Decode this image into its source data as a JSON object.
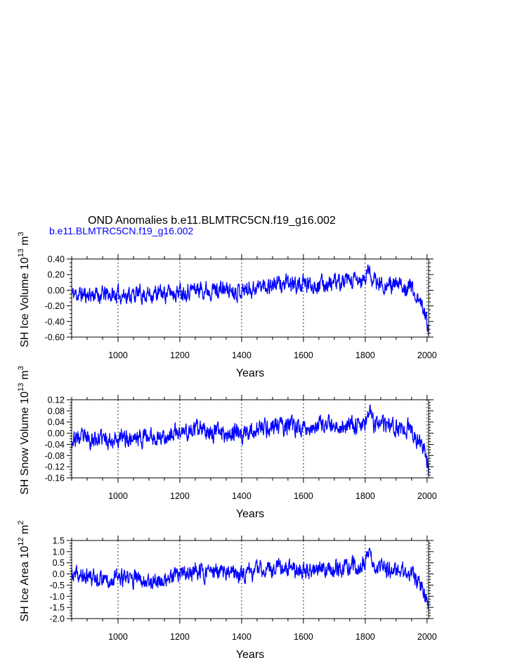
{
  "title": "OND Anomalies b.e11.BLMTRC5CN.f19_g16.002",
  "legend_label": "b.e11.BLMTRC5CN.f19_g16.002",
  "series_color": "#0000ff",
  "chart_data": [
    {
      "type": "line",
      "ylabel_main": "SH Ice Volume 10",
      "ylabel_exp": "13",
      "ylabel_unit": "m",
      "ylabel_unit_exp": "3",
      "xlabel": "Years",
      "xlim": [
        850,
        2005
      ],
      "ylim": [
        -0.6,
        0.4
      ],
      "xticks": [
        1000,
        1200,
        1400,
        1600,
        1800,
        2000
      ],
      "yticks": [
        0.4,
        0.2,
        0.0,
        -0.2,
        -0.4,
        -0.6
      ],
      "ytick_labels": [
        "0.40",
        "0.20",
        "0.00",
        "-0.20",
        "-0.40",
        "-0.60"
      ],
      "grid_x": "dashed at x ticks",
      "series": [
        {
          "seed": 11,
          "amp": 0.085,
          "trend": [
            [
              850,
              -0.05
            ],
            [
              1000,
              -0.06
            ],
            [
              1150,
              -0.04
            ],
            [
              1250,
              0.02
            ],
            [
              1400,
              0.0
            ],
            [
              1500,
              0.08
            ],
            [
              1600,
              0.07
            ],
            [
              1700,
              0.09
            ],
            [
              1800,
              0.12
            ],
            [
              1808,
              0.28
            ],
            [
              1830,
              0.1
            ],
            [
              1900,
              0.05
            ],
            [
              1950,
              0.05
            ],
            [
              1960,
              -0.05
            ],
            [
              1990,
              -0.25
            ],
            [
              2005,
              -0.45
            ]
          ]
        }
      ]
    },
    {
      "type": "line",
      "ylabel_main": "SH Snow Volume 10",
      "ylabel_exp": "13",
      "ylabel_unit": "m",
      "ylabel_unit_exp": "3",
      "xlabel": "Years",
      "xlim": [
        850,
        2005
      ],
      "ylim": [
        -0.16,
        0.12
      ],
      "xticks": [
        1000,
        1200,
        1400,
        1600,
        1800,
        2000
      ],
      "yticks": [
        0.12,
        0.08,
        0.04,
        0.0,
        -0.04,
        -0.08,
        -0.12,
        -0.16
      ],
      "ytick_labels": [
        "0.12",
        "0.08",
        "0.04",
        "0.00",
        "-0.04",
        "-0.08",
        "-0.12",
        "-0.16"
      ],
      "grid_x": "dashed at x ticks",
      "series": [
        {
          "seed": 23,
          "amp": 0.025,
          "trend": [
            [
              850,
              -0.02
            ],
            [
              1000,
              -0.02
            ],
            [
              1150,
              -0.01
            ],
            [
              1250,
              0.01
            ],
            [
              1400,
              0.0
            ],
            [
              1500,
              0.025
            ],
            [
              1600,
              0.02
            ],
            [
              1700,
              0.025
            ],
            [
              1800,
              0.035
            ],
            [
              1808,
              0.09
            ],
            [
              1830,
              0.03
            ],
            [
              1900,
              0.02
            ],
            [
              1950,
              0.015
            ],
            [
              1960,
              -0.01
            ],
            [
              1990,
              -0.06
            ],
            [
              2005,
              -0.13
            ]
          ]
        }
      ]
    },
    {
      "type": "line",
      "ylabel_main": "SH Ice Area 10",
      "ylabel_exp": "12",
      "ylabel_unit": "m",
      "ylabel_unit_exp": "2",
      "xlabel": "Years",
      "xlim": [
        850,
        2005
      ],
      "ylim": [
        -2.0,
        1.5
      ],
      "xticks": [
        1000,
        1200,
        1400,
        1600,
        1800,
        2000
      ],
      "yticks": [
        1.5,
        1.0,
        0.5,
        0.0,
        -0.5,
        -1.0,
        -1.5,
        -2.0
      ],
      "ytick_labels": [
        "1.5",
        "1.0",
        "0.5",
        "0.0",
        "-0.5",
        "-1.0",
        "-1.5",
        "-2.0"
      ],
      "grid_x": "dashed at x ticks",
      "series": [
        {
          "seed": 37,
          "amp": 0.3,
          "trend": [
            [
              850,
              -0.1
            ],
            [
              1000,
              -0.2
            ],
            [
              1150,
              -0.3
            ],
            [
              1250,
              0.1
            ],
            [
              1400,
              0.0
            ],
            [
              1500,
              0.3
            ],
            [
              1600,
              0.15
            ],
            [
              1700,
              0.25
            ],
            [
              1800,
              0.4
            ],
            [
              1808,
              1.1
            ],
            [
              1830,
              0.3
            ],
            [
              1900,
              0.1
            ],
            [
              1950,
              0.1
            ],
            [
              1960,
              -0.2
            ],
            [
              1990,
              -0.8
            ],
            [
              2005,
              -1.6
            ]
          ]
        }
      ]
    }
  ]
}
